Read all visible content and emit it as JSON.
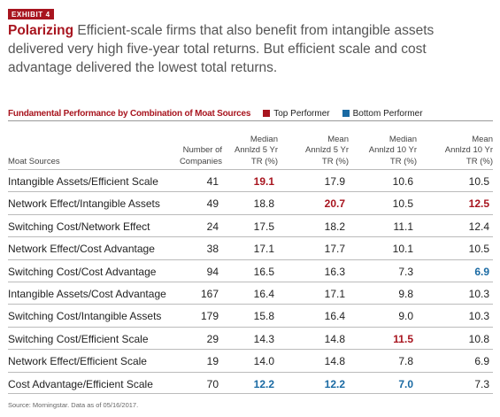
{
  "exhibit_label": "EXHIBIT 4",
  "headline": {
    "lead": "Polarizing",
    "text": " Efficient-scale firms that also benefit from intangible assets delivered very high five-year total returns. But efficient scale and cost advantage delivered the lowest total returns."
  },
  "table_title": "Fundamental Performance by Combination of Moat Sources",
  "legend": {
    "top_label": "Top Performer",
    "bottom_label": "Bottom Performer",
    "top_color": "#a8151f",
    "bottom_color": "#1a6aa3"
  },
  "columns": {
    "source": "Moat Sources",
    "count": [
      "Number of",
      "Companies"
    ],
    "median5": [
      "Median",
      "Annlzd 5 Yr",
      "TR (%)"
    ],
    "mean5": [
      "Mean",
      "Annlzd 5 Yr",
      "TR (%)"
    ],
    "median10": [
      "Median",
      "Annlzd 10 Yr",
      "TR (%)"
    ],
    "mean10": [
      "Mean",
      "Annlzd 10 Yr",
      "TR (%)"
    ]
  },
  "rows": [
    {
      "source": "Intangible Assets/Efficient Scale",
      "count": "41",
      "median5": "19.1",
      "mean5": "17.9",
      "median10": "10.6",
      "mean10": "10.5",
      "hl": {
        "median5": "top"
      }
    },
    {
      "source": "Network Effect/Intangible Assets",
      "count": "49",
      "median5": "18.8",
      "mean5": "20.7",
      "median10": "10.5",
      "mean10": "12.5",
      "hl": {
        "mean5": "top",
        "mean10": "top"
      }
    },
    {
      "source": "Switching Cost/Network Effect",
      "count": "24",
      "median5": "17.5",
      "mean5": "18.2",
      "median10": "11.1",
      "mean10": "12.4",
      "hl": {}
    },
    {
      "source": "Network Effect/Cost Advantage",
      "count": "38",
      "median5": "17.1",
      "mean5": "17.7",
      "median10": "10.1",
      "mean10": "10.5",
      "hl": {}
    },
    {
      "source": "Switching Cost/Cost Advantage",
      "count": "94",
      "median5": "16.5",
      "mean5": "16.3",
      "median10": "7.3",
      "mean10": "6.9",
      "hl": {
        "mean10": "bottom"
      }
    },
    {
      "source": "Intangible Assets/Cost Advantage",
      "count": "167",
      "median5": "16.4",
      "mean5": "17.1",
      "median10": "9.8",
      "mean10": "10.3",
      "hl": {}
    },
    {
      "source": "Switching Cost/Intangible Assets",
      "count": "179",
      "median5": "15.8",
      "mean5": "16.4",
      "median10": "9.0",
      "mean10": "10.3",
      "hl": {}
    },
    {
      "source": "Switching Cost/Efficient Scale",
      "count": "29",
      "median5": "14.3",
      "mean5": "14.8",
      "median10": "11.5",
      "mean10": "10.8",
      "hl": {
        "median10": "top"
      }
    },
    {
      "source": "Network Effect/Efficient Scale",
      "count": "19",
      "median5": "14.0",
      "mean5": "14.8",
      "median10": "7.8",
      "mean10": "6.9",
      "hl": {}
    },
    {
      "source": "Cost Advantage/Efficient Scale",
      "count": "70",
      "median5": "12.2",
      "mean5": "12.2",
      "median10": "7.0",
      "mean10": "7.3",
      "hl": {
        "median5": "bottom",
        "mean5": "bottom",
        "median10": "bottom"
      }
    }
  ],
  "source_note": "Source: Morningstar. Data as of 05/16/2017."
}
